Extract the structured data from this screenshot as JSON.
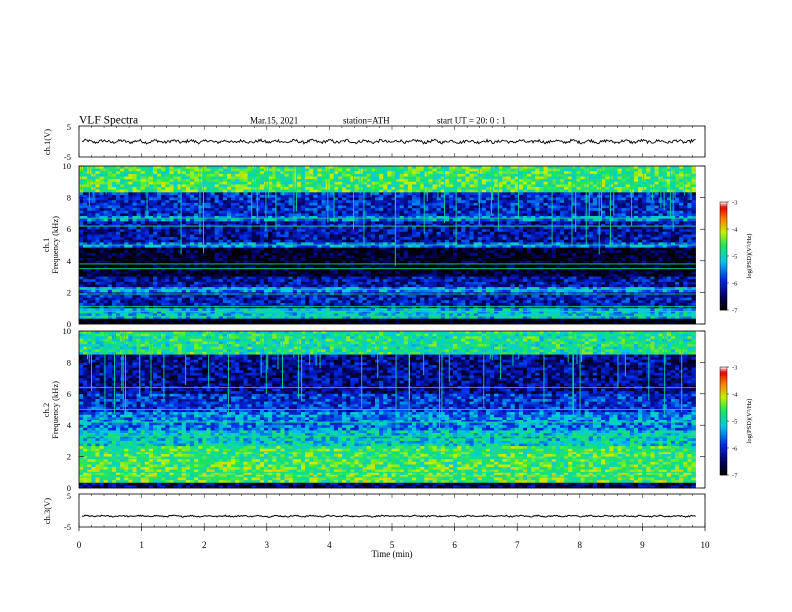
{
  "header": {
    "title": "VLF  Spectra",
    "date": "Mar.15, 2021",
    "station": "station=ATH",
    "start": "start  UT  =   20: 0   : 1"
  },
  "chart_data": [
    {
      "type": "line",
      "name": "ch1-waveform",
      "ylabel": "ch.1(V)",
      "ylim": [
        -5,
        5
      ],
      "yticks": [
        -5,
        5
      ],
      "xlim": [
        0,
        10
      ],
      "x_end": 9.85,
      "baseline": 0,
      "amplitude": 0.6
    },
    {
      "type": "heatmap",
      "name": "ch1-spectrogram",
      "ylabel": "ch.1\nFrequency (kHz)",
      "ylim": [
        0,
        10
      ],
      "yticks": [
        0,
        2,
        4,
        6,
        8,
        10
      ],
      "xlim": [
        0,
        10
      ],
      "x_end": 9.85,
      "colorbar": {
        "label": "log(PSD)(V²/Hz)",
        "range": [
          -7,
          -3
        ],
        "ticks": [
          -7,
          -6,
          -5,
          -4,
          -3
        ]
      },
      "bands_khz": [
        {
          "f0": 8.3,
          "f1": 10.0,
          "level": -4.6
        },
        {
          "f0": 6.9,
          "f1": 8.3,
          "level": -6.0
        },
        {
          "f0": 6.5,
          "f1": 6.9,
          "level": -5.5
        },
        {
          "f0": 5.2,
          "f1": 6.5,
          "level": -6.2
        },
        {
          "f0": 4.9,
          "f1": 5.2,
          "level": -5.6
        },
        {
          "f0": 3.0,
          "f1": 4.9,
          "level": -6.8
        },
        {
          "f0": 2.4,
          "f1": 3.0,
          "level": -6.2
        },
        {
          "f0": 2.0,
          "f1": 2.4,
          "level": -5.4
        },
        {
          "f0": 1.0,
          "f1": 2.0,
          "level": -6.1
        },
        {
          "f0": 0.3,
          "f1": 1.0,
          "level": -5.2
        },
        {
          "f0": 0.0,
          "f1": 0.3,
          "level": -7.0
        }
      ],
      "lines_khz": [
        6.7,
        6.2,
        5.0,
        3.8,
        3.5,
        2.2,
        1.9,
        1.1,
        0.8,
        0.5
      ]
    },
    {
      "type": "heatmap",
      "name": "ch2-spectrogram",
      "ylabel": "ch.2\nFrequency (kHz)",
      "ylim": [
        0,
        10
      ],
      "yticks": [
        0,
        2,
        4,
        6,
        8,
        10
      ],
      "xlim": [
        0,
        10
      ],
      "x_end": 9.85,
      "colorbar": {
        "label": "log(PSD)(V²/Hz)",
        "range": [
          -7,
          -3
        ],
        "ticks": [
          -7,
          -6,
          -5,
          -4,
          -3
        ]
      },
      "bands_khz": [
        {
          "f0": 8.5,
          "f1": 10.0,
          "level": -4.8
        },
        {
          "f0": 6.0,
          "f1": 8.5,
          "level": -6.3
        },
        {
          "f0": 4.8,
          "f1": 6.0,
          "level": -5.9
        },
        {
          "f0": 3.6,
          "f1": 4.8,
          "level": -5.5
        },
        {
          "f0": 2.6,
          "f1": 3.6,
          "level": -5.1
        },
        {
          "f0": 1.4,
          "f1": 2.6,
          "level": -4.6
        },
        {
          "f0": 0.4,
          "f1": 1.4,
          "level": -4.5
        },
        {
          "f0": 0.0,
          "f1": 0.4,
          "level": -6.5
        }
      ],
      "lines_khz": [
        6.4,
        5.0,
        4.2,
        3.3,
        2.3,
        1.9,
        1.0,
        0.7
      ]
    },
    {
      "type": "line",
      "name": "ch3-waveform",
      "ylabel": "ch.3(V)",
      "ylim": [
        -5,
        5
      ],
      "yticks": [
        -5,
        5
      ],
      "xlim": [
        0,
        10
      ],
      "x_end": 9.85,
      "baseline": -1.7,
      "amplitude": 0.25,
      "xlabel": "Time  (min)",
      "xticks": [
        0,
        1,
        2,
        3,
        4,
        5,
        6,
        7,
        8,
        9,
        10
      ]
    }
  ]
}
